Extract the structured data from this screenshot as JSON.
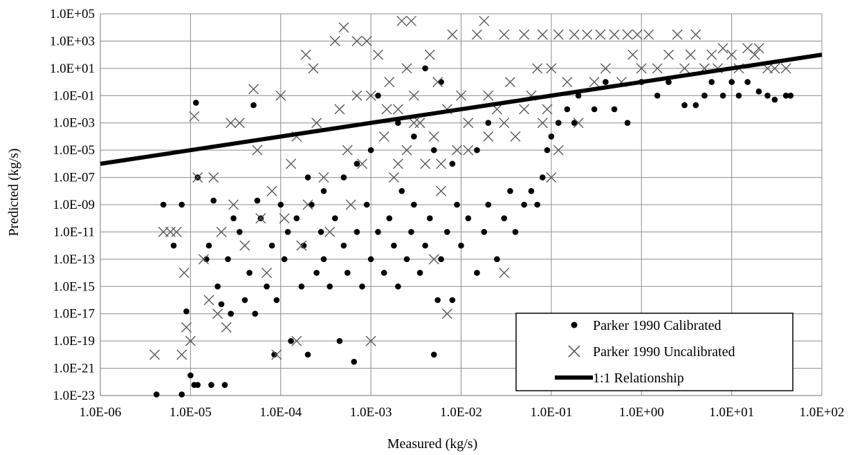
{
  "chart_data": {
    "type": "scatter",
    "title": "",
    "xlabel": "Measured (kg/s)",
    "ylabel": "Predicted (kg/s)",
    "x_scale": "log",
    "y_scale": "log",
    "xlim": [
      1e-06,
      100
    ],
    "ylim": [
      1e-23,
      100000.0
    ],
    "grid": true,
    "legend_position": "bottom-right",
    "x_ticks": [
      "1.0E-06",
      "1.0E-05",
      "1.0E-04",
      "1.0E-03",
      "1.0E-02",
      "1.0E-01",
      "1.0E+00",
      "1.0E+01",
      "1.0E+02"
    ],
    "y_ticks": [
      "1.0E+05",
      "1.0E+03",
      "1.0E+01",
      "1.0E-01",
      "1.0E-03",
      "1.0E-05",
      "1.0E-07",
      "1.0E-09",
      "1.0E-11",
      "1.0E-13",
      "1.0E-15",
      "1.0E-17",
      "1.0E-19",
      "1.0E-21",
      "1.0E-23"
    ],
    "series": [
      {
        "name": "Parker 1990 Calibrated",
        "marker": "dot",
        "color": "#000000",
        "points": [
          [
            4.2e-06,
            1.2e-23
          ],
          [
            5e-06,
            1e-09
          ],
          [
            6.5e-06,
            1e-12
          ],
          [
            8e-06,
            1e-09
          ],
          [
            8e-06,
            1.2e-23
          ],
          [
            9e-06,
            1.5e-17
          ],
          [
            1e-05,
            3e-22
          ],
          [
            1.1e-05,
            6e-23
          ],
          [
            1.15e-05,
            0.03
          ],
          [
            1.2e-05,
            1e-07
          ],
          [
            1.2e-05,
            6e-23
          ],
          [
            1.5e-05,
            1e-13
          ],
          [
            1.6e-05,
            1e-12
          ],
          [
            1.7e-05,
            6e-23
          ],
          [
            1.8e-05,
            2e-09
          ],
          [
            2e-05,
            1e-15
          ],
          [
            2.2e-05,
            5e-17
          ],
          [
            2.4e-05,
            6e-23
          ],
          [
            2.6e-05,
            1e-13
          ],
          [
            2.8e-05,
            1e-17
          ],
          [
            3e-05,
            1e-10
          ],
          [
            3.5e-05,
            1e-11
          ],
          [
            4e-05,
            1e-16
          ],
          [
            4.5e-05,
            1e-14
          ],
          [
            5e-05,
            0.02
          ],
          [
            5.2e-05,
            1e-17
          ],
          [
            5.5e-05,
            2e-09
          ],
          [
            6e-05,
            1e-10
          ],
          [
            7e-05,
            1e-15
          ],
          [
            8e-05,
            1e-12
          ],
          [
            8.5e-05,
            1e-20
          ],
          [
            9e-05,
            1e-16
          ],
          [
            0.0001,
            1e-09
          ],
          [
            0.00011,
            1e-13
          ],
          [
            0.00012,
            1e-11
          ],
          [
            0.00013,
            1e-19
          ],
          [
            0.00015,
            1e-10
          ],
          [
            0.00017,
            1e-15
          ],
          [
            0.00018,
            1e-12
          ],
          [
            0.0002,
            1e-20
          ],
          [
            0.00022,
            1e-09
          ],
          [
            0.00025,
            1e-14
          ],
          [
            0.00028,
            1e-11
          ],
          [
            0.0003,
            1e-13
          ],
          [
            0.00035,
            1e-15
          ],
          [
            0.0004,
            1e-10
          ],
          [
            0.00045,
            1e-19
          ],
          [
            0.0005,
            1e-12
          ],
          [
            0.00055,
            1e-14
          ],
          [
            0.00065,
            3e-21
          ],
          [
            0.0007,
            1e-11
          ],
          [
            0.0008,
            1e-15
          ],
          [
            0.0009,
            1e-09
          ],
          [
            0.001,
            1e-13
          ],
          [
            0.0012,
            1e-11
          ],
          [
            0.0014,
            1e-14
          ],
          [
            0.0016,
            1e-10
          ],
          [
            0.0018,
            1e-12
          ],
          [
            0.002,
            1e-15
          ],
          [
            0.0022,
            1e-08
          ],
          [
            0.0025,
            1e-13
          ],
          [
            0.0028,
            1e-11
          ],
          [
            0.003,
            1e-09
          ],
          [
            0.0035,
            1e-14
          ],
          [
            0.004,
            1e-12
          ],
          [
            0.0045,
            1e-10
          ],
          [
            0.005,
            1e-20
          ],
          [
            0.0055,
            1e-16
          ],
          [
            0.006,
            1e-13
          ],
          [
            0.007,
            1e-11
          ],
          [
            0.008,
            1e-16
          ],
          [
            0.009,
            1e-09
          ],
          [
            0.01,
            1e-12
          ],
          [
            0.012,
            1e-10
          ],
          [
            0.015,
            1e-14
          ],
          [
            0.018,
            1e-11
          ],
          [
            0.02,
            1e-09
          ],
          [
            0.025,
            1e-13
          ],
          [
            0.03,
            1e-10
          ],
          [
            0.035,
            1e-08
          ],
          [
            0.04,
            1e-11
          ],
          [
            0.05,
            1e-09
          ],
          [
            0.06,
            1e-08
          ],
          [
            0.07,
            1e-09
          ],
          [
            0.08,
            1e-07
          ],
          [
            0.09,
            1e-05
          ],
          [
            0.1,
            0.0001
          ],
          [
            0.12,
            0.001
          ],
          [
            0.15,
            0.01
          ],
          [
            0.18,
            0.001
          ],
          [
            0.2,
            0.1
          ],
          [
            0.3,
            0.01
          ],
          [
            0.4,
            1.0
          ],
          [
            0.5,
            0.01
          ],
          [
            0.7,
            0.001
          ],
          [
            1.0,
            1.0
          ],
          [
            1.5,
            0.1
          ],
          [
            2.0,
            1.0
          ],
          [
            3.0,
            0.02
          ],
          [
            4.0,
            0.02
          ],
          [
            5.0,
            0.1
          ],
          [
            6.0,
            1.0
          ],
          [
            8.0,
            0.1
          ],
          [
            10.0,
            1.0
          ],
          [
            12.0,
            0.1
          ],
          [
            15.0,
            1.0
          ],
          [
            20.0,
            0.2
          ],
          [
            25.0,
            0.1
          ],
          [
            30.0,
            0.05
          ],
          [
            40.0,
            0.1
          ],
          [
            45.0,
            0.1
          ],
          [
            0.002,
            0.001
          ],
          [
            0.003,
            0.0001
          ],
          [
            0.005,
            1e-05
          ],
          [
            0.008,
            1e-06
          ],
          [
            0.015,
            1e-05
          ],
          [
            0.02,
            0.001
          ],
          [
            0.0005,
            1e-07
          ],
          [
            0.0007,
            1e-06
          ],
          [
            0.001,
            1e-05
          ],
          [
            0.0003,
            1e-08
          ],
          [
            0.0002,
            1e-07
          ],
          [
            0.0012,
            0.1
          ],
          [
            0.004,
            10.0
          ],
          [
            0.006,
            1.0
          ]
        ]
      },
      {
        "name": "Parker 1990 Uncalibrated",
        "marker": "x",
        "color": "#595959",
        "points": [
          [
            4e-06,
            1e-20
          ],
          [
            5e-06,
            1e-11
          ],
          [
            6e-06,
            1e-11
          ],
          [
            7e-06,
            1e-11
          ],
          [
            8e-06,
            1e-20
          ],
          [
            8.5e-06,
            1e-14
          ],
          [
            9e-06,
            1e-18
          ],
          [
            1e-05,
            1e-19
          ],
          [
            1.1e-05,
            0.003
          ],
          [
            1.2e-05,
            1e-07
          ],
          [
            1.4e-05,
            1e-13
          ],
          [
            1.6e-05,
            1e-16
          ],
          [
            1.8e-05,
            1e-07
          ],
          [
            2e-05,
            1e-17
          ],
          [
            2.2e-05,
            1e-11
          ],
          [
            2.5e-05,
            1e-18
          ],
          [
            2.8e-05,
            0.001
          ],
          [
            3e-05,
            1e-09
          ],
          [
            3.5e-05,
            0.001
          ],
          [
            4e-05,
            1e-12
          ],
          [
            5e-05,
            0.3
          ],
          [
            5.5e-05,
            1e-05
          ],
          [
            6e-05,
            1e-10
          ],
          [
            7e-05,
            1e-14
          ],
          [
            8e-05,
            1e-08
          ],
          [
            9e-05,
            1e-20
          ],
          [
            0.0001,
            0.1
          ],
          [
            0.00011,
            1e-10
          ],
          [
            0.00013,
            1e-06
          ],
          [
            0.00015,
            0.0001
          ],
          [
            0.00017,
            1e-12
          ],
          [
            0.00019,
            100.0
          ],
          [
            0.0002,
            1e-09
          ],
          [
            0.00023,
            10.0
          ],
          [
            0.00025,
            0.001
          ],
          [
            0.0003,
            1e-07
          ],
          [
            0.00035,
            1e-11
          ],
          [
            0.0004,
            1000.0
          ],
          [
            0.00045,
            0.01
          ],
          [
            0.0005,
            10000.0
          ],
          [
            0.00055,
            1e-05
          ],
          [
            0.0006,
            1e-09
          ],
          [
            0.0007,
            1000.0
          ],
          [
            0.0008,
            1e-06
          ],
          [
            0.0009,
            1000.0
          ],
          [
            0.001,
            0.1
          ],
          [
            0.0012,
            100.0
          ],
          [
            0.0014,
            0.0001
          ],
          [
            0.0016,
            1.0
          ],
          [
            0.0018,
            1e-07
          ],
          [
            0.002,
            0.01
          ],
          [
            0.0022,
            30000.0
          ],
          [
            0.0025,
            1e-05
          ],
          [
            0.0028,
            30000.0
          ],
          [
            0.003,
            0.1
          ],
          [
            0.0035,
            0.001
          ],
          [
            0.004,
            1e-06
          ],
          [
            0.0045,
            100.0
          ],
          [
            0.005,
            0.0001
          ],
          [
            0.0055,
            1.0
          ],
          [
            0.006,
            1e-08
          ],
          [
            0.007,
            0.01
          ],
          [
            0.008,
            3000.0
          ],
          [
            0.009,
            1e-05
          ],
          [
            0.01,
            0.1
          ],
          [
            0.012,
            0.001
          ],
          [
            0.015,
            3000.0
          ],
          [
            0.018,
            30000.0
          ],
          [
            0.02,
            0.1
          ],
          [
            0.025,
            0.01
          ],
          [
            0.03,
            3000.0
          ],
          [
            0.035,
            1.0
          ],
          [
            0.04,
            0.0001
          ],
          [
            0.05,
            3000.0
          ],
          [
            0.06,
            0.1
          ],
          [
            0.07,
            10.0
          ],
          [
            0.08,
            3000.0
          ],
          [
            0.09,
            0.01
          ],
          [
            0.1,
            10.0
          ],
          [
            0.12,
            3000.0
          ],
          [
            0.15,
            1.0
          ],
          [
            0.18,
            3000.0
          ],
          [
            0.2,
            0.001
          ],
          [
            0.25,
            3000.0
          ],
          [
            0.3,
            1.0
          ],
          [
            0.35,
            3000.0
          ],
          [
            0.4,
            10.0
          ],
          [
            0.5,
            3000.0
          ],
          [
            0.6,
            1.0
          ],
          [
            0.7,
            3000.0
          ],
          [
            0.8,
            100.0
          ],
          [
            0.9,
            3000.0
          ],
          [
            1.0,
            10.0
          ],
          [
            1.2,
            3000.0
          ],
          [
            1.5,
            10.0
          ],
          [
            2.0,
            100.0
          ],
          [
            2.5,
            3000.0
          ],
          [
            3.0,
            10.0
          ],
          [
            3.5,
            100.0
          ],
          [
            4.0,
            3000.0
          ],
          [
            5.0,
            10.0
          ],
          [
            6.0,
            100.0
          ],
          [
            7.0,
            10.0
          ],
          [
            8.0,
            300.0
          ],
          [
            10.0,
            100.0
          ],
          [
            12.0,
            10.0
          ],
          [
            15.0,
            300.0
          ],
          [
            18.0,
            100.0
          ],
          [
            20.0,
            300.0
          ],
          [
            25.0,
            10.0
          ],
          [
            30.0,
            10.0
          ],
          [
            40.0,
            10.0
          ],
          [
            0.005,
            1e-13
          ],
          [
            0.007,
            1e-17
          ],
          [
            0.03,
            1e-14
          ],
          [
            0.001,
            1e-19
          ],
          [
            0.00015,
            1e-19
          ],
          [
            0.002,
            1e-06
          ],
          [
            0.003,
            0.001
          ],
          [
            0.006,
            1e-06
          ],
          [
            0.012,
            1e-05
          ],
          [
            0.02,
            0.0001
          ],
          [
            0.03,
            0.001
          ],
          [
            0.05,
            0.01
          ],
          [
            0.08,
            0.001
          ],
          [
            0.1,
            1e-07
          ],
          [
            0.12,
            1e-05
          ],
          [
            0.0007,
            0.1
          ],
          [
            0.0015,
            0.01
          ],
          [
            0.0025,
            10.0
          ]
        ]
      },
      {
        "name": "1:1 Relationship",
        "marker": "line",
        "color": "#000000",
        "points": [
          [
            1e-06,
            1e-06
          ],
          [
            100,
            100
          ]
        ]
      }
    ]
  }
}
